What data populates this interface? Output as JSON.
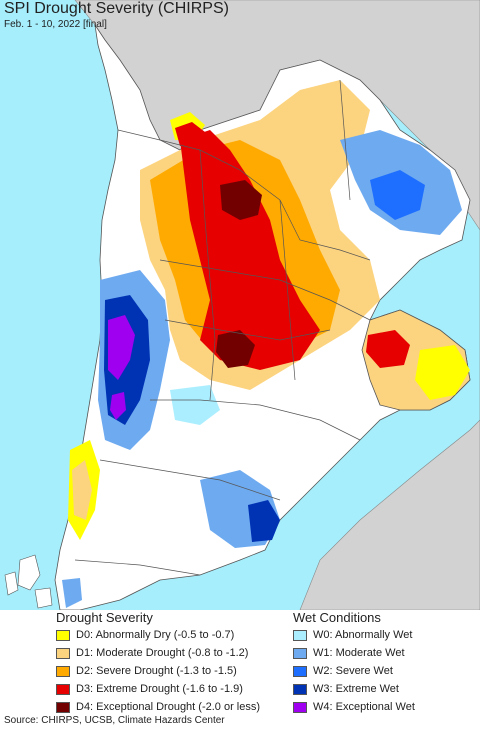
{
  "title": "SPI Drought Severity (CHIRPS)",
  "subtitle": "Feb. 1 - 10, 2022 [final]",
  "colors": {
    "ocean": "#a6eefc",
    "land_neutral": "#ffffff",
    "outside_land": "#d2d2d2",
    "border": "#555555"
  },
  "legend": {
    "drought": {
      "heading": "Drought Severity",
      "items": [
        {
          "label": "D0: Abnormally Dry (-0.5 to -0.7)",
          "color": "#ffff00"
        },
        {
          "label": "D1: Moderate Drought (-0.8 to -1.2)",
          "color": "#fcd37f"
        },
        {
          "label": "D2: Severe Drought (-1.3 to -1.5)",
          "color": "#ffaa00"
        },
        {
          "label": "D3: Extreme Drought (-1.6 to -1.9)",
          "color": "#e60000"
        },
        {
          "label": "D4: Exceptional Drought (-2.0 or less)",
          "color": "#730000"
        }
      ]
    },
    "wet": {
      "heading": "Wet Conditions",
      "items": [
        {
          "label": "W0: Abnormally Wet",
          "color": "#aaeeff"
        },
        {
          "label": "W1: Moderate Wet",
          "color": "#6eaaf0"
        },
        {
          "label": "W2: Severe Wet",
          "color": "#1e6eff"
        },
        {
          "label": "W3: Extreme Wet",
          "color": "#0032b4"
        },
        {
          "label": "W4: Exceptional Wet",
          "color": "#a000f0"
        }
      ]
    }
  },
  "source": "Source: CHIRPS, UCSB, Climate Hazards Center"
}
